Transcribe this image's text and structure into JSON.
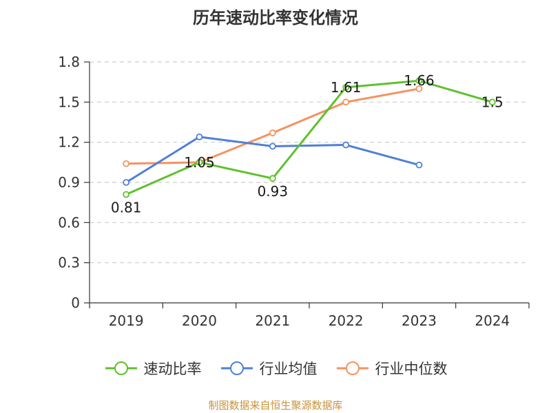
{
  "chart_data": {
    "type": "line",
    "title": "历年速动比率变化情况",
    "categories": [
      "2019",
      "2020",
      "2021",
      "2022",
      "2023",
      "2024"
    ],
    "ylim": [
      0,
      1.8
    ],
    "yticks": [
      0,
      0.3,
      0.6,
      0.9,
      1.2,
      1.5,
      1.8
    ],
    "ytick_labels": [
      "0",
      "0.3",
      "0.6",
      "0.9",
      "1.2",
      "1.5",
      "1.8"
    ],
    "grid": true,
    "legend_position": "bottom",
    "series": [
      {
        "name": "速动比率",
        "color": "#5ec12c",
        "values": [
          0.81,
          1.05,
          0.93,
          1.61,
          1.66,
          1.5
        ],
        "labels": [
          "0.81",
          "1.05",
          "0.93",
          "1.61",
          "1.66",
          "1.5"
        ]
      },
      {
        "name": "行业均值",
        "color": "#4f7fd8",
        "values": [
          0.9,
          1.24,
          1.17,
          1.18,
          1.03,
          null
        ]
      },
      {
        "name": "行业中位数",
        "color": "#f5925f",
        "values": [
          1.04,
          1.05,
          1.27,
          1.5,
          1.6,
          null
        ]
      }
    ]
  },
  "source": {
    "text": "制图数据来自恒生聚源数据库",
    "color": "#c8923a"
  }
}
